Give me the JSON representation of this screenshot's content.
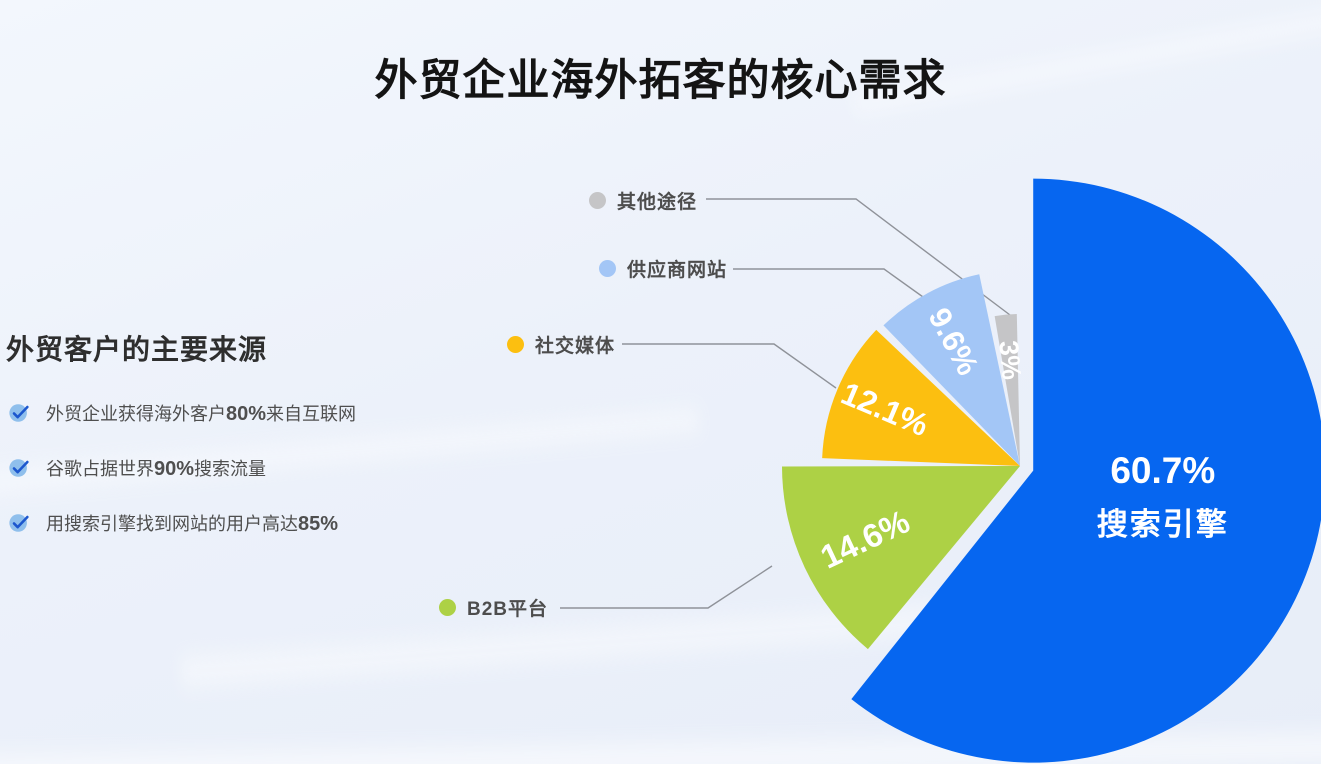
{
  "page": {
    "title": "外贸企业海外拓客的核心需求",
    "background_color": "#edf2fa"
  },
  "left_panel": {
    "heading": "外贸客户的主要来源",
    "highlight_color": "#1766e8",
    "check_icon": {
      "circle_color": "#8fbfec",
      "check_color": "#1c57ce"
    },
    "bullets": [
      {
        "pre": "外贸企业获得海外客户",
        "highlight": "80%",
        "post": "来自互联网"
      },
      {
        "pre": "谷歌占据世界",
        "highlight": "90%",
        "post": "搜索流量"
      },
      {
        "pre": "用搜索引擎找到网站的用户高达",
        "highlight": "85%",
        "post": ""
      }
    ]
  },
  "chart_data": {
    "type": "pie",
    "title": "外贸客户的主要来源",
    "direction": "clockwise",
    "start_angle_deg": 0,
    "legend_position": "left",
    "connector_color": "#8f9299",
    "slices": [
      {
        "label": "搜索引擎",
        "value": 60.7,
        "display": "60.7%",
        "color": "#0666f0",
        "name_inside": true
      },
      {
        "label": "B2B平台",
        "value": 14.6,
        "display": "14.6%",
        "color": "#add145"
      },
      {
        "label": "社交媒体",
        "value": 12.1,
        "display": "12.1%",
        "color": "#fcbf10"
      },
      {
        "label": "供应商网站",
        "value": 9.6,
        "display": "9.6%",
        "color": "#a3c6f6"
      },
      {
        "label": "其他途径",
        "value": 3,
        "display": "3%",
        "color": "#c5c5c7"
      }
    ]
  }
}
